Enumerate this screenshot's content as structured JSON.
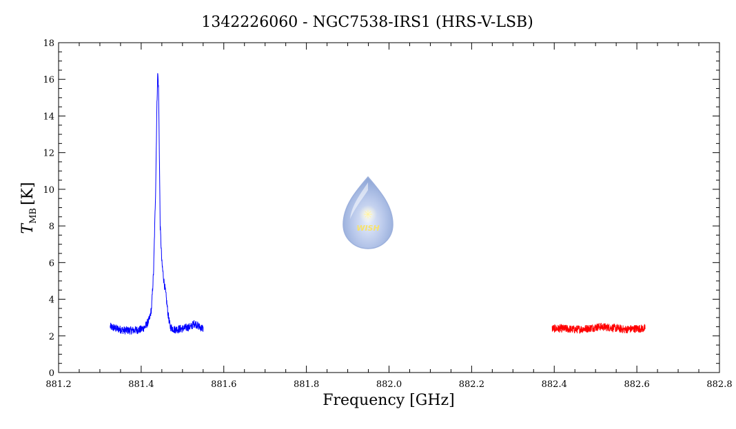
{
  "chart_data": {
    "type": "line",
    "title": "1342226060 - NGC7538-IRS1 (HRS-V-LSB)",
    "xlabel": "Frequency [GHz]",
    "ylabel_main": "T",
    "ylabel_sub": "MB",
    "ylabel_unit": "[K]",
    "xlim": [
      881.2,
      882.8
    ],
    "ylim": [
      0,
      18
    ],
    "x_ticks": [
      "881.2",
      "881.4",
      "881.6",
      "881.8",
      "882.0",
      "882.2",
      "882.4",
      "882.6",
      "882.8"
    ],
    "y_ticks": [
      "0",
      "2",
      "4",
      "6",
      "8",
      "10",
      "12",
      "14",
      "16",
      "18"
    ],
    "grid": false,
    "series": [
      {
        "color": "#0000ff",
        "x": [
          881.325,
          881.34,
          881.36,
          881.38,
          881.4,
          881.41,
          881.42,
          881.425,
          881.43,
          881.435,
          881.438,
          881.44,
          881.442,
          881.444,
          881.446,
          881.45,
          881.455,
          881.46,
          881.465,
          881.47,
          881.48,
          881.5,
          881.52,
          881.53,
          881.54,
          881.55
        ],
        "y": [
          2.5,
          2.4,
          2.3,
          2.3,
          2.35,
          2.5,
          2.9,
          3.5,
          5.5,
          10.0,
          14.5,
          16.4,
          15.5,
          12.0,
          8.0,
          6.0,
          5.0,
          4.2,
          3.2,
          2.5,
          2.35,
          2.4,
          2.5,
          2.7,
          2.5,
          2.4
        ]
      },
      {
        "color": "#ff0000",
        "x": [
          882.395,
          882.42,
          882.45,
          882.48,
          882.51,
          882.54,
          882.57,
          882.6,
          882.62
        ],
        "y": [
          2.4,
          2.4,
          2.35,
          2.4,
          2.5,
          2.45,
          2.35,
          2.4,
          2.4
        ]
      }
    ]
  },
  "logo": {
    "text": "WISH",
    "colors": {
      "outer": "#8ea6d6",
      "inner": "#c9d6f0",
      "star": "#fff3a0"
    }
  }
}
